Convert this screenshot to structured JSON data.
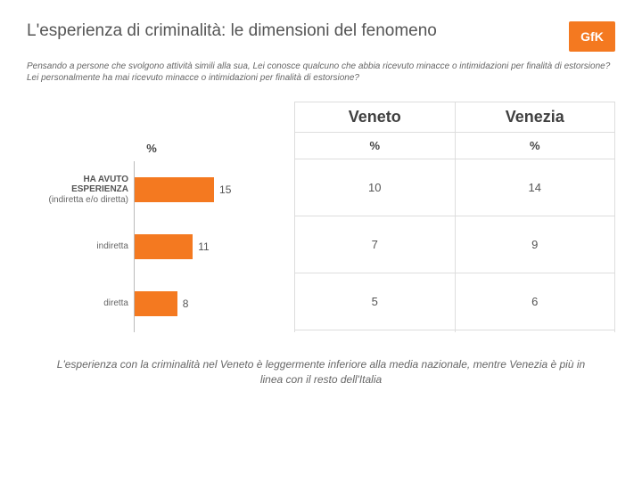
{
  "title": "L'esperienza di criminalità: le dimensioni del fenomeno",
  "logo_text": "GfK",
  "logo_bg": "#f47920",
  "question": "Pensando a persone che svolgono attività simili alla sua, Lei conosce qualcuno che abbia ricevuto minacce o intimidazioni per finalità di estorsione? Lei personalmente ha mai ricevuto minacce o intimidazioni per finalità di estorsione?",
  "bars_header": "%",
  "countries": [
    {
      "name": "Veneto",
      "sub": "%"
    },
    {
      "name": "Venezia",
      "sub": "%"
    }
  ],
  "rows": [
    {
      "label_main": "HA AVUTO\nESPERIENZA",
      "label_sub": "(indiretta e/o diretta)",
      "bar_value": 15,
      "bar_width_pct": 56,
      "cells": [
        "10",
        "14"
      ]
    },
    {
      "label_main": "",
      "label_plain": "indiretta",
      "bar_value": 11,
      "bar_width_pct": 41,
      "cells": [
        "7",
        "9"
      ]
    },
    {
      "label_main": "",
      "label_plain": "diretta",
      "bar_value": 8,
      "bar_width_pct": 30,
      "cells": [
        "5",
        "6"
      ]
    }
  ],
  "footer": "L'esperienza con la criminalità nel Veneto è leggermente inferiore alla media nazionale, mentre Venezia è più in linea con il resto dell'Italia",
  "bar_color": "#f47920"
}
